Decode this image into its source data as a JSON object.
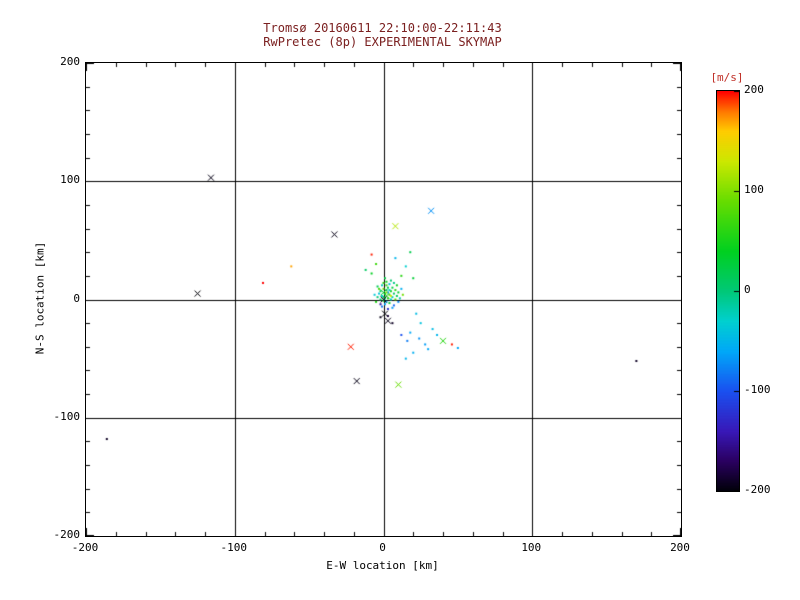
{
  "figure": {
    "title_line1": "Tromsø 20160611 22:10:00-22:11:43",
    "title_line2": "RwPretec (8p) EXPERIMENTAL SKYMAP",
    "title_color": "#7b2020",
    "axis_text_color": "#000000",
    "background_color": "#ffffff"
  },
  "chart_data": {
    "type": "scatter",
    "title": "Tromsø 20160611 22:10:00-22:11:43 / RwPretec (8p) EXPERIMENTAL SKYMAP",
    "xlabel": "E-W location [km]",
    "ylabel": "N-S location [km]",
    "xlim": [
      -200,
      200
    ],
    "ylim": [
      -200,
      200
    ],
    "xticks": [
      "-200",
      "-100",
      "0",
      "100",
      "200"
    ],
    "yticks": [
      "200",
      "100",
      "0",
      "-100",
      "-200"
    ],
    "ytick_values": [
      200,
      100,
      0,
      -100,
      -200
    ],
    "xtick_values": [
      -200,
      -100,
      0,
      100,
      200
    ],
    "grid_values": [
      -100,
      0,
      100
    ],
    "grid": "on",
    "legend_position": "none",
    "colorbar": {
      "label": "[m/s]",
      "label_color": "#c03028",
      "min": -200,
      "max": 200,
      "ticks": [
        200,
        100,
        0,
        -100,
        -200
      ],
      "tick_labels": [
        "200",
        "100",
        "0",
        "-100",
        "-200"
      ],
      "stops": [
        {
          "v": -200,
          "c": "#000008"
        },
        {
          "v": -170,
          "c": "#2a0060"
        },
        {
          "v": -140,
          "c": "#3818b8"
        },
        {
          "v": -100,
          "c": "#1a50f0"
        },
        {
          "v": -60,
          "c": "#00a8f8"
        },
        {
          "v": -30,
          "c": "#00d0d0"
        },
        {
          "v": 0,
          "c": "#00c878"
        },
        {
          "v": 40,
          "c": "#00d020"
        },
        {
          "v": 90,
          "c": "#66dd00"
        },
        {
          "v": 130,
          "c": "#cce800"
        },
        {
          "v": 160,
          "c": "#ffcc00"
        },
        {
          "v": 180,
          "c": "#ff7700"
        },
        {
          "v": 200,
          "c": "#ff0000"
        }
      ]
    },
    "points": [
      [
        0,
        2,
        20,
        "d"
      ],
      [
        1,
        5,
        40,
        "d"
      ],
      [
        2,
        8,
        10,
        "d"
      ],
      [
        -1,
        3,
        -30,
        "d"
      ],
      [
        3,
        1,
        60,
        "d"
      ],
      [
        2,
        -2,
        -50,
        "d"
      ],
      [
        0,
        6,
        30,
        "x"
      ],
      [
        4,
        4,
        80,
        "d"
      ],
      [
        -2,
        0,
        10,
        "d"
      ],
      [
        1,
        -4,
        -60,
        "d"
      ],
      [
        5,
        7,
        50,
        "d"
      ],
      [
        3,
        10,
        20,
        "d"
      ],
      [
        -3,
        5,
        -40,
        "d"
      ],
      [
        2,
        12,
        70,
        "d"
      ],
      [
        0,
        9,
        90,
        "d"
      ],
      [
        6,
        2,
        -20,
        "d"
      ],
      [
        -1,
        -6,
        -80,
        "d"
      ],
      [
        4,
        -3,
        30,
        "d"
      ],
      [
        7,
        5,
        10,
        "d"
      ],
      [
        1,
        1,
        -10,
        "d"
      ],
      [
        2,
        3,
        50,
        "x"
      ],
      [
        -2,
        7,
        20,
        "d"
      ],
      [
        5,
        0,
        -30,
        "d"
      ],
      [
        0,
        -1,
        40,
        "d"
      ],
      [
        3,
        6,
        -70,
        "d"
      ],
      [
        8,
        8,
        60,
        "d"
      ],
      [
        -4,
        2,
        0,
        "d"
      ],
      [
        6,
        10,
        25,
        "d"
      ],
      [
        2,
        15,
        45,
        "d"
      ],
      [
        -1,
        12,
        -20,
        "d"
      ],
      [
        9,
        3,
        15,
        "d"
      ],
      [
        4,
        13,
        -45,
        "d"
      ],
      [
        10,
        6,
        35,
        "d"
      ],
      [
        -5,
        -2,
        55,
        "d"
      ],
      [
        7,
        -5,
        -90,
        "d"
      ],
      [
        0,
        14,
        65,
        "d"
      ],
      [
        11,
        1,
        -15,
        "d"
      ],
      [
        3,
        -8,
        -120,
        "d"
      ],
      [
        -3,
        9,
        75,
        "d"
      ],
      [
        5,
        16,
        5,
        "d"
      ],
      [
        12,
        9,
        -55,
        "d"
      ],
      [
        8,
        0,
        85,
        "d"
      ],
      [
        -6,
        4,
        -35,
        "d"
      ],
      [
        1,
        18,
        25,
        "d"
      ],
      [
        13,
        4,
        95,
        "d"
      ],
      [
        6,
        -7,
        -65,
        "d"
      ],
      [
        -2,
        -4,
        -150,
        "d"
      ],
      [
        9,
        12,
        45,
        "d"
      ],
      [
        2,
        6,
        110,
        "d"
      ],
      [
        4,
        8,
        -25,
        "d"
      ],
      [
        -4,
        11,
        15,
        "d"
      ],
      [
        10,
        -2,
        -75,
        "d"
      ],
      [
        0,
        0,
        -190,
        "x"
      ],
      [
        5,
        3,
        130,
        "d"
      ],
      [
        7,
        14,
        -5,
        "d"
      ],
      [
        1,
        -12,
        -200,
        "x"
      ],
      [
        -2,
        -15,
        -195,
        "d"
      ],
      [
        3,
        -14,
        -185,
        "d"
      ],
      [
        6,
        -20,
        -190,
        "d"
      ],
      [
        18,
        -28,
        -60,
        "d"
      ],
      [
        24,
        -33,
        -70,
        "d"
      ],
      [
        20,
        -45,
        -55,
        "d"
      ],
      [
        28,
        -38,
        -65,
        "d"
      ],
      [
        15,
        -50,
        -50,
        "d"
      ],
      [
        33,
        -25,
        -45,
        "d"
      ],
      [
        16,
        -35,
        -80,
        "d"
      ],
      [
        25,
        -20,
        -40,
        "d"
      ],
      [
        30,
        -42,
        -60,
        "d"
      ],
      [
        12,
        -30,
        -100,
        "d"
      ],
      [
        36,
        -30,
        -50,
        "d"
      ],
      [
        22,
        -12,
        -45,
        "d"
      ],
      [
        12,
        20,
        60,
        "d"
      ],
      [
        -8,
        22,
        40,
        "d"
      ],
      [
        15,
        28,
        -30,
        "d"
      ],
      [
        -5,
        30,
        70,
        "d"
      ],
      [
        8,
        35,
        -50,
        "d"
      ],
      [
        20,
        18,
        30,
        "d"
      ],
      [
        -12,
        25,
        10,
        "d"
      ],
      [
        18,
        40,
        20,
        "d"
      ],
      [
        -186,
        -118,
        -190,
        "d"
      ],
      [
        -116,
        103,
        -195,
        "x"
      ],
      [
        -125,
        5,
        -200,
        "x"
      ],
      [
        -81,
        14,
        200,
        "d"
      ],
      [
        -62,
        28,
        170,
        "d"
      ],
      [
        -33,
        55,
        -195,
        "x"
      ],
      [
        -22,
        -40,
        195,
        "x"
      ],
      [
        -18,
        -69,
        -195,
        "x"
      ],
      [
        8,
        62,
        120,
        "x"
      ],
      [
        32,
        75,
        -70,
        "x"
      ],
      [
        40,
        -35,
        60,
        "x"
      ],
      [
        46,
        -38,
        195,
        "d"
      ],
      [
        50,
        -41,
        -60,
        "d"
      ],
      [
        10,
        -72,
        90,
        "x"
      ],
      [
        170,
        -52,
        -190,
        "d"
      ],
      [
        -8,
        38,
        195,
        "d"
      ],
      [
        3,
        -18,
        -195,
        "x"
      ]
    ]
  }
}
